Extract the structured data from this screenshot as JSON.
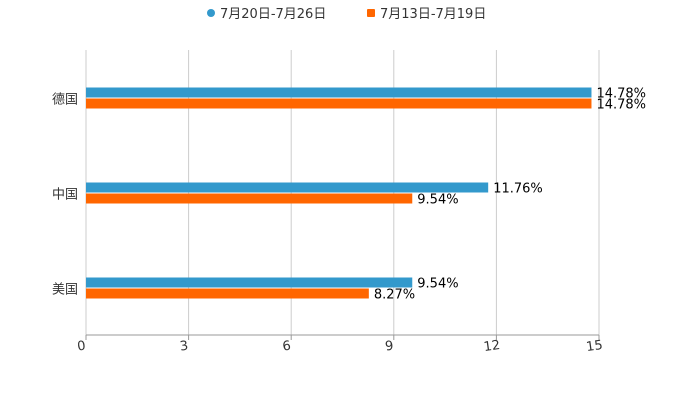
{
  "chart_data": {
    "type": "bar",
    "orientation": "horizontal",
    "title": "",
    "xlabel": "",
    "ylabel": "",
    "categories": [
      "德国",
      "中国",
      "美国"
    ],
    "series": [
      {
        "name": "7月20日-7月26日",
        "color": "#3399cc",
        "values": [
          14.78,
          11.76,
          9.54
        ],
        "labels": [
          "14.78%",
          "11.76%",
          "9.54%"
        ]
      },
      {
        "name": "7月13日-7月19日",
        "color": "#ff6600",
        "values": [
          14.78,
          9.54,
          8.27
        ],
        "labels": [
          "14.78%",
          "9.54%",
          "8.27%"
        ]
      }
    ],
    "xlim": [
      0,
      15
    ],
    "xticks": [
      0,
      3,
      6,
      9,
      12,
      15
    ],
    "xtick_labels": [
      "0",
      "3",
      "6",
      "9",
      "12",
      "15"
    ],
    "grid": true,
    "legend_position": "top-center"
  }
}
